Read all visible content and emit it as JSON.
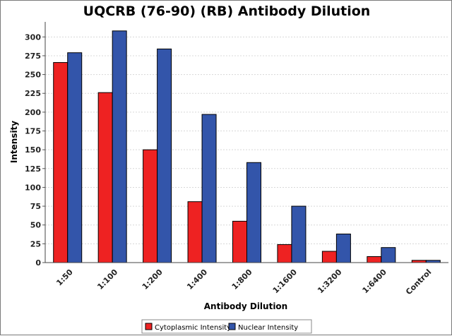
{
  "chart_data": {
    "type": "bar",
    "title": "UQCRB (76-90) (RB) Antibody Dilution",
    "xlabel": "Antibody Dilution",
    "ylabel": "Intensity",
    "ylim": [
      0,
      320
    ],
    "yticks": [
      0,
      25,
      50,
      75,
      100,
      125,
      150,
      175,
      200,
      225,
      250,
      275,
      300
    ],
    "grid": true,
    "legend_position": "bottom",
    "categories": [
      "1:50",
      "1:100",
      "1:200",
      "1:400",
      "1:800",
      "1:1600",
      "1:3200",
      "1:6400",
      "Control"
    ],
    "series": [
      {
        "name": "Cytoplasmic Intensity",
        "color": "#ee2222",
        "values": [
          266,
          226,
          150,
          81,
          55,
          24,
          15,
          8,
          3
        ]
      },
      {
        "name": "Nuclear Intensity",
        "color": "#3355aa",
        "values": [
          279,
          308,
          284,
          197,
          133,
          75,
          38,
          20,
          3
        ]
      }
    ]
  }
}
